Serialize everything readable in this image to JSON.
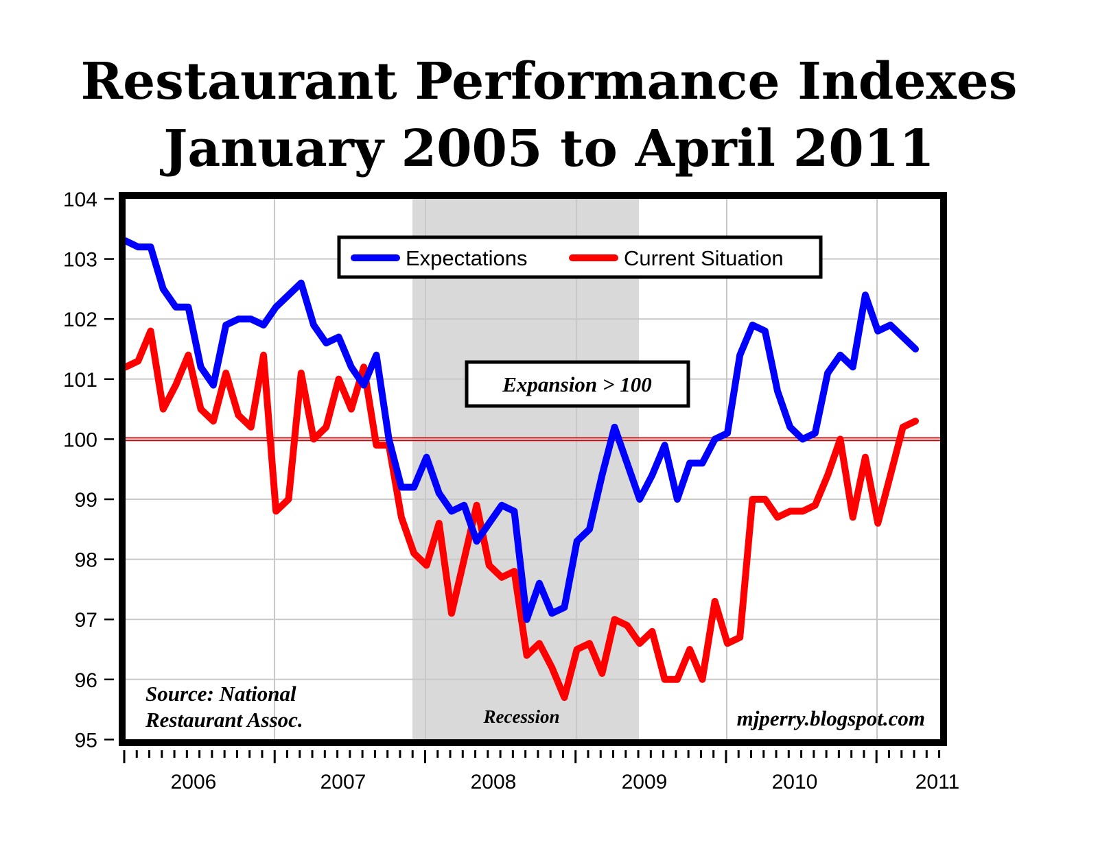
{
  "title_line1": "Restaurant Performance Indexes",
  "title_line2": "January 2005 to April 2011",
  "legend": {
    "expectations": "Expectations",
    "current": "Current Situation"
  },
  "annotations": {
    "expansion": "Expansion > 100",
    "recession": "Recession",
    "source_line1": "Source: National",
    "source_line2": "Restaurant Assoc.",
    "watermark": "mjperry.blogspot.com"
  },
  "colors": {
    "expectations": "#0000ff",
    "current": "#ff0000",
    "recession_shade": "#d9d9d9",
    "baseline": "#cc0000"
  },
  "chart_data": {
    "type": "line",
    "title": "Restaurant Performance Indexes January 2005 to April 2011",
    "xlabel": "",
    "ylabel": "",
    "ylim": [
      95,
      104
    ],
    "yticks": [
      95,
      96,
      97,
      98,
      99,
      100,
      101,
      102,
      103,
      104
    ],
    "xtick_labels": [
      "2006",
      "2007",
      "2008",
      "2009",
      "2010",
      "2011"
    ],
    "grid": true,
    "legend_position": "top-center",
    "reference_line": 100,
    "shaded_region": {
      "label": "Recession",
      "start_month_index": 23,
      "end_month_index": 41
    },
    "series": [
      {
        "name": "Expectations",
        "color": "#0000ff",
        "values": [
          103.3,
          103.2,
          103.2,
          102.5,
          102.2,
          102.2,
          101.2,
          100.9,
          101.9,
          102.0,
          102.0,
          101.9,
          102.2,
          102.4,
          102.6,
          101.9,
          101.6,
          101.7,
          101.2,
          100.9,
          101.4,
          100.0,
          99.2,
          99.2,
          99.7,
          99.1,
          98.8,
          98.9,
          98.3,
          98.6,
          98.9,
          98.8,
          97.0,
          97.6,
          97.1,
          97.2,
          98.3,
          98.5,
          99.4,
          100.2,
          99.6,
          99.0,
          99.4,
          99.9,
          99.0,
          99.6,
          99.6,
          100.0,
          100.1,
          101.4,
          101.9,
          101.8,
          100.8,
          100.2,
          100.0,
          100.1,
          101.1,
          101.4,
          101.2,
          102.4,
          101.8,
          101.9,
          101.7,
          101.5
        ]
      },
      {
        "name": "Current Situation",
        "color": "#ff0000",
        "values": [
          101.2,
          101.3,
          101.8,
          100.5,
          100.9,
          101.4,
          100.5,
          100.3,
          101.1,
          100.4,
          100.2,
          101.4,
          98.8,
          99.0,
          101.1,
          100.0,
          100.2,
          101.0,
          100.5,
          101.2,
          99.9,
          99.9,
          98.7,
          98.1,
          97.9,
          98.6,
          97.1,
          98.0,
          98.9,
          97.9,
          97.7,
          97.8,
          96.4,
          96.6,
          96.2,
          95.7,
          96.5,
          96.6,
          96.1,
          97.0,
          96.9,
          96.6,
          96.8,
          96.0,
          96.0,
          96.5,
          96.0,
          97.3,
          96.6,
          96.7,
          99.0,
          99.0,
          98.7,
          98.8,
          98.8,
          98.9,
          99.4,
          100.0,
          98.7,
          99.7,
          98.6,
          99.4,
          100.2,
          100.3
        ]
      }
    ]
  }
}
